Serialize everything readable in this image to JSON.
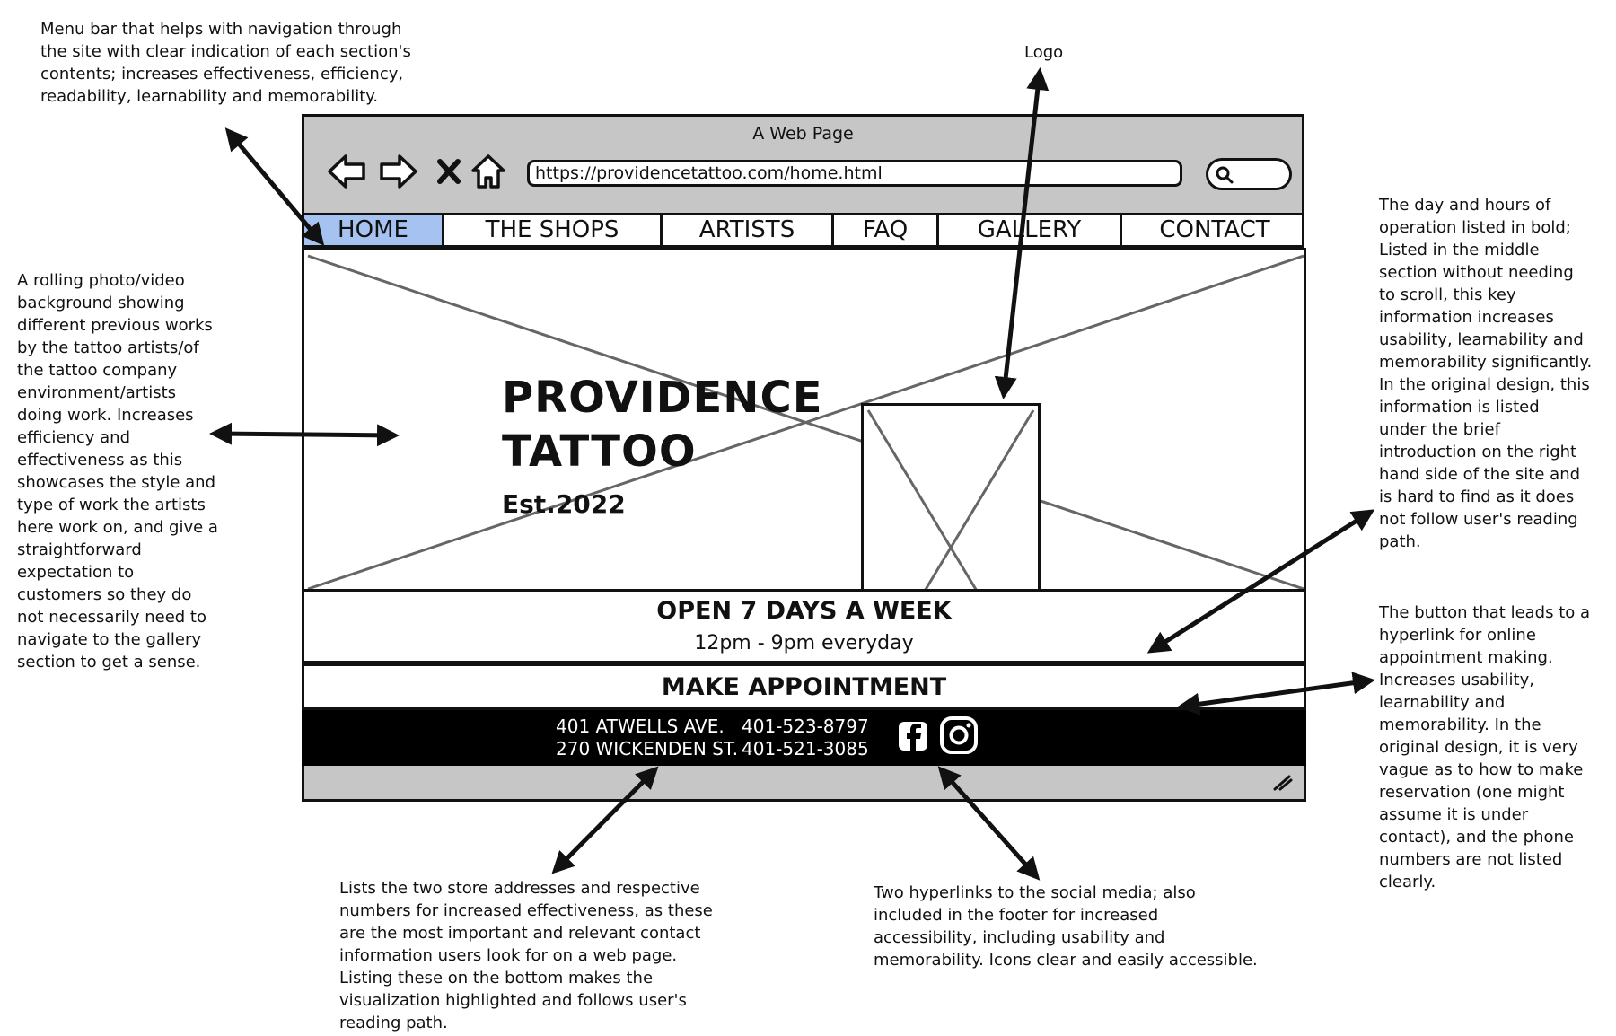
{
  "annotations": {
    "menu_bar": "Menu bar that helps with navigation through\nthe site with clear indication of each section's\ncontents; increases effectiveness, efficiency,\nreadability, learnability and memorability.",
    "logo": "Logo",
    "background": "A rolling photo/video\nbackground showing\ndifferent previous works\nby the tattoo artists/of\nthe tattoo company\nenvironment/artists\ndoing work. Increases\nefficiency and\neffectiveness as this\nshowcases the style and\ntype of work the artists\nhere work on, and give a\nstraightforward\nexpectation to\ncustomers so they do\nnot necessarily need to\nnavigate to the gallery\nsection to get a sense.",
    "hours": "The day and hours of\noperation listed in bold;\nListed in the middle\nsection without needing\nto scroll, this key\ninformation increases\nusability, learnability and\nmemorability significantly.\nIn the original design, this\ninformation is listed\nunder the brief\nintroduction on the right\nhand side of the site and\nis hard to find as it does\nnot follow user's reading\npath.",
    "appointment": "The button that leads to a\nhyperlink for online\nappointment making.\nIncreases usability,\nlearnability and\nmemorability. In the\noriginal design, it is very\nvague as to how to make\nreservation (one might\nassume it is under\ncontact), and the phone\nnumbers are not listed\nclearly.",
    "addresses": "Lists the two store addresses and respective\nnumbers for increased effectiveness, as these\nare the most important and relevant contact\ninformation users look for on a web page.\nListing these on the bottom makes the\nvisualization highlighted and follows user's\nreading path.",
    "social": "Two hyperlinks to the social media; also\nincluded in the footer for increased\naccessibility, including usability and\nmemorability. Icons clear and easily accessible."
  },
  "browser": {
    "title": "A Web Page",
    "url": "https://providencetattoo.com/home.html",
    "icons": [
      "back-arrow-icon",
      "forward-arrow-icon",
      "stop-icon",
      "home-icon",
      "search-icon"
    ]
  },
  "nav": {
    "items": [
      "HOME",
      "THE SHOPS",
      "ARTISTS",
      "FAQ",
      "GALLERY",
      "CONTACT"
    ],
    "active": "HOME",
    "active_color": "#a6c2f0"
  },
  "hero": {
    "title_line1": "PROVIDENCE",
    "title_line2": "TATTOO",
    "est": "Est.2022"
  },
  "hours": {
    "heading": "OPEN 7 DAYS A WEEK",
    "time": "12pm - 9pm everyday"
  },
  "appointment": {
    "label": "MAKE APPOINTMENT"
  },
  "footer": {
    "addresses": [
      "401 ATWELLS AVE.",
      "270 WICKENDEN ST."
    ],
    "phones": [
      "401-523-8797",
      "401-521-3085"
    ],
    "social_icons": [
      "facebook-icon",
      "instagram-icon"
    ]
  }
}
